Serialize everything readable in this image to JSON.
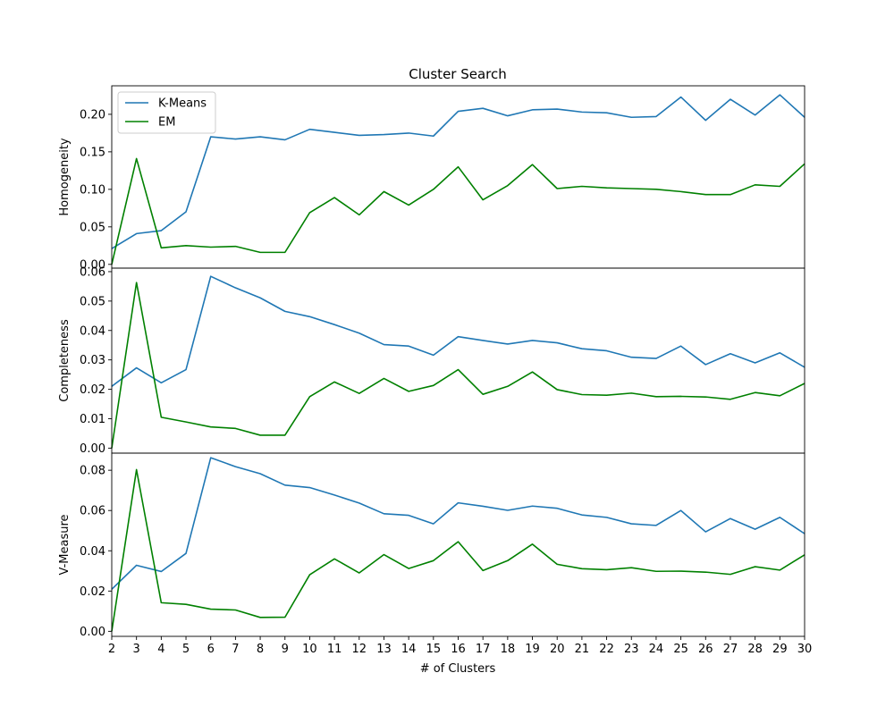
{
  "chart_data": {
    "type": "line",
    "title": "Cluster Search",
    "xlabel": "# of Clusters",
    "xlim": [
      2,
      30
    ],
    "x": [
      2,
      3,
      4,
      5,
      6,
      7,
      8,
      9,
      10,
      11,
      12,
      13,
      14,
      15,
      16,
      17,
      18,
      19,
      20,
      21,
      22,
      23,
      24,
      25,
      26,
      27,
      28,
      29,
      30
    ],
    "legend": {
      "placement": "top-left",
      "entries": [
        "K-Means",
        "EM"
      ]
    },
    "series_colors": {
      "K-Means": "#1f77b4",
      "EM": "#008000"
    },
    "panels": [
      {
        "ylabel": "Homogeneity",
        "ylim": [
          -0.005,
          0.238
        ],
        "yticks": [
          0.0,
          0.05,
          0.1,
          0.15,
          0.2
        ],
        "ytick_labels": [
          "0.00",
          "0.05",
          "0.10",
          "0.15",
          "0.20"
        ],
        "series": [
          {
            "name": "K-Means",
            "values": [
              0.021,
              0.041,
              0.045,
              0.07,
              0.17,
              0.167,
              0.17,
              0.166,
              0.18,
              0.176,
              0.172,
              0.173,
              0.175,
              0.171,
              0.204,
              0.208,
              0.198,
              0.206,
              0.207,
              0.203,
              0.202,
              0.196,
              0.197,
              0.223,
              0.192,
              0.22,
              0.199,
              0.226,
              0.196
            ]
          },
          {
            "name": "EM",
            "values": [
              0.0,
              0.141,
              0.022,
              0.025,
              0.023,
              0.024,
              0.016,
              0.016,
              0.069,
              0.089,
              0.066,
              0.097,
              0.079,
              0.1,
              0.13,
              0.086,
              0.105,
              0.133,
              0.101,
              0.104,
              0.102,
              0.101,
              0.1,
              0.097,
              0.093,
              0.093,
              0.106,
              0.104,
              0.134
            ]
          }
        ]
      },
      {
        "ylabel": "Completeness",
        "ylim": [
          -0.0017,
          0.0612
        ],
        "yticks": [
          0.0,
          0.01,
          0.02,
          0.03,
          0.04,
          0.05,
          0.06
        ],
        "ytick_labels": [
          "0.00",
          "0.01",
          "0.02",
          "0.03",
          "0.04",
          "0.05",
          "0.06"
        ],
        "series": [
          {
            "name": "K-Means",
            "values": [
              0.021,
              0.0273,
              0.0222,
              0.0267,
              0.0584,
              0.0545,
              0.0511,
              0.0465,
              0.0447,
              0.042,
              0.0391,
              0.0352,
              0.0347,
              0.0316,
              0.0379,
              0.0366,
              0.0354,
              0.0366,
              0.0358,
              0.0338,
              0.0331,
              0.0309,
              0.0305,
              0.0347,
              0.0284,
              0.0321,
              0.029,
              0.0324,
              0.0275
            ]
          },
          {
            "name": "EM",
            "values": [
              0.0,
              0.0563,
              0.0105,
              0.0089,
              0.0072,
              0.0067,
              0.0044,
              0.0044,
              0.0175,
              0.0225,
              0.0186,
              0.0237,
              0.0193,
              0.0213,
              0.0267,
              0.0183,
              0.021,
              0.0259,
              0.0199,
              0.0182,
              0.018,
              0.0187,
              0.0175,
              0.0176,
              0.0174,
              0.0166,
              0.0189,
              0.0178,
              0.022
            ]
          }
        ]
      },
      {
        "ylabel": "V-Measure",
        "ylim": [
          -0.0025,
          0.0885
        ],
        "yticks": [
          0.0,
          0.02,
          0.04,
          0.06,
          0.08
        ],
        "ytick_labels": [
          "0.00",
          "0.02",
          "0.04",
          "0.06",
          "0.08"
        ],
        "series": [
          {
            "name": "K-Means",
            "values": [
              0.0209,
              0.0328,
              0.0297,
              0.0387,
              0.0862,
              0.0818,
              0.0783,
              0.0726,
              0.0714,
              0.0677,
              0.0637,
              0.0584,
              0.0576,
              0.0534,
              0.0638,
              0.0621,
              0.0601,
              0.0622,
              0.0611,
              0.0578,
              0.0566,
              0.0534,
              0.0526,
              0.06,
              0.0494,
              0.056,
              0.0507,
              0.0566,
              0.0485
            ]
          },
          {
            "name": "EM",
            "values": [
              0.0,
              0.0803,
              0.0142,
              0.0134,
              0.011,
              0.0106,
              0.0069,
              0.007,
              0.0281,
              0.036,
              0.029,
              0.0381,
              0.0312,
              0.0351,
              0.0445,
              0.0302,
              0.0351,
              0.0433,
              0.0333,
              0.0311,
              0.0306,
              0.0316,
              0.0298,
              0.0299,
              0.0294,
              0.0283,
              0.0321,
              0.0304,
              0.038
            ]
          }
        ]
      }
    ]
  }
}
